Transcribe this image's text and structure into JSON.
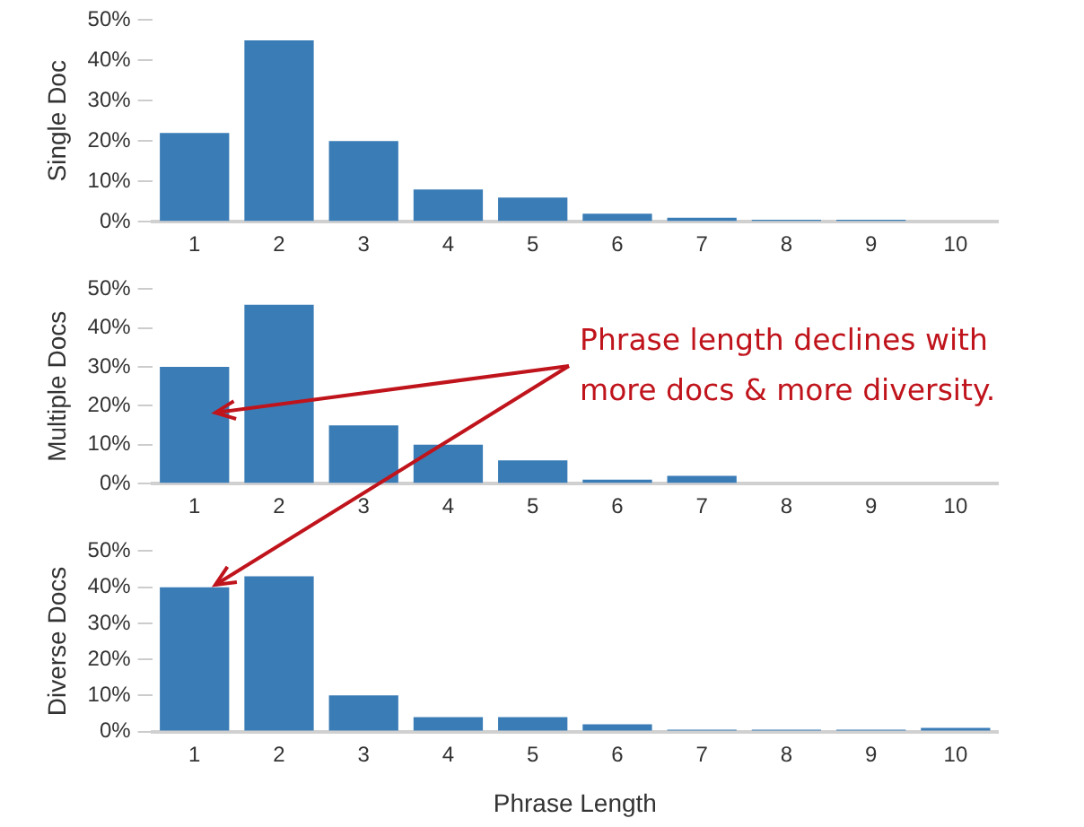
{
  "chart_data": [
    {
      "type": "bar",
      "ylabel": "Single Doc",
      "categories": [
        "1",
        "2",
        "3",
        "4",
        "5",
        "6",
        "7",
        "8",
        "9",
        "10"
      ],
      "color": "#3a7cb6",
      "values": [
        22,
        45,
        20,
        8,
        6,
        2,
        1,
        0.5,
        0.5,
        0
      ],
      "ylim": [
        0,
        50
      ],
      "yticks": [
        {
          "value": 0,
          "label": "0%"
        },
        {
          "value": 10,
          "label": "10%"
        },
        {
          "value": 20,
          "label": "20%"
        },
        {
          "value": 30,
          "label": "30%"
        },
        {
          "value": 40,
          "label": "40%"
        },
        {
          "value": 50,
          "label": "50%"
        }
      ],
      "grid": false,
      "legend": false
    },
    {
      "type": "bar",
      "ylabel": "Multiple Docs",
      "categories": [
        "1",
        "2",
        "3",
        "4",
        "5",
        "6",
        "7",
        "8",
        "9",
        "10"
      ],
      "color": "#3a7cb6",
      "values": [
        30,
        46,
        15,
        10,
        6,
        1,
        2,
        0,
        0,
        0
      ],
      "ylim": [
        0,
        50
      ],
      "yticks": [
        {
          "value": 0,
          "label": "0%"
        },
        {
          "value": 10,
          "label": "10%"
        },
        {
          "value": 20,
          "label": "20%"
        },
        {
          "value": 30,
          "label": "30%"
        },
        {
          "value": 40,
          "label": "40%"
        },
        {
          "value": 50,
          "label": "50%"
        }
      ],
      "grid": false,
      "legend": false,
      "annotations": [
        "Phrase length declines with more docs & more diversity."
      ]
    },
    {
      "type": "bar",
      "ylabel": "Diverse Docs",
      "xlabel": "Phrase Length",
      "categories": [
        "1",
        "2",
        "3",
        "4",
        "5",
        "6",
        "7",
        "8",
        "9",
        "10"
      ],
      "color": "#3a7cb6",
      "values": [
        40,
        43,
        10,
        4,
        4,
        2,
        0.5,
        0.5,
        0.5,
        1
      ],
      "ylim": [
        0,
        50
      ],
      "yticks": [
        {
          "value": 0,
          "label": "0%"
        },
        {
          "value": 10,
          "label": "10%"
        },
        {
          "value": 20,
          "label": "20%"
        },
        {
          "value": 30,
          "label": "30%"
        },
        {
          "value": 40,
          "label": "40%"
        },
        {
          "value": 50,
          "label": "50%"
        }
      ],
      "grid": false,
      "legend": false
    }
  ]
}
